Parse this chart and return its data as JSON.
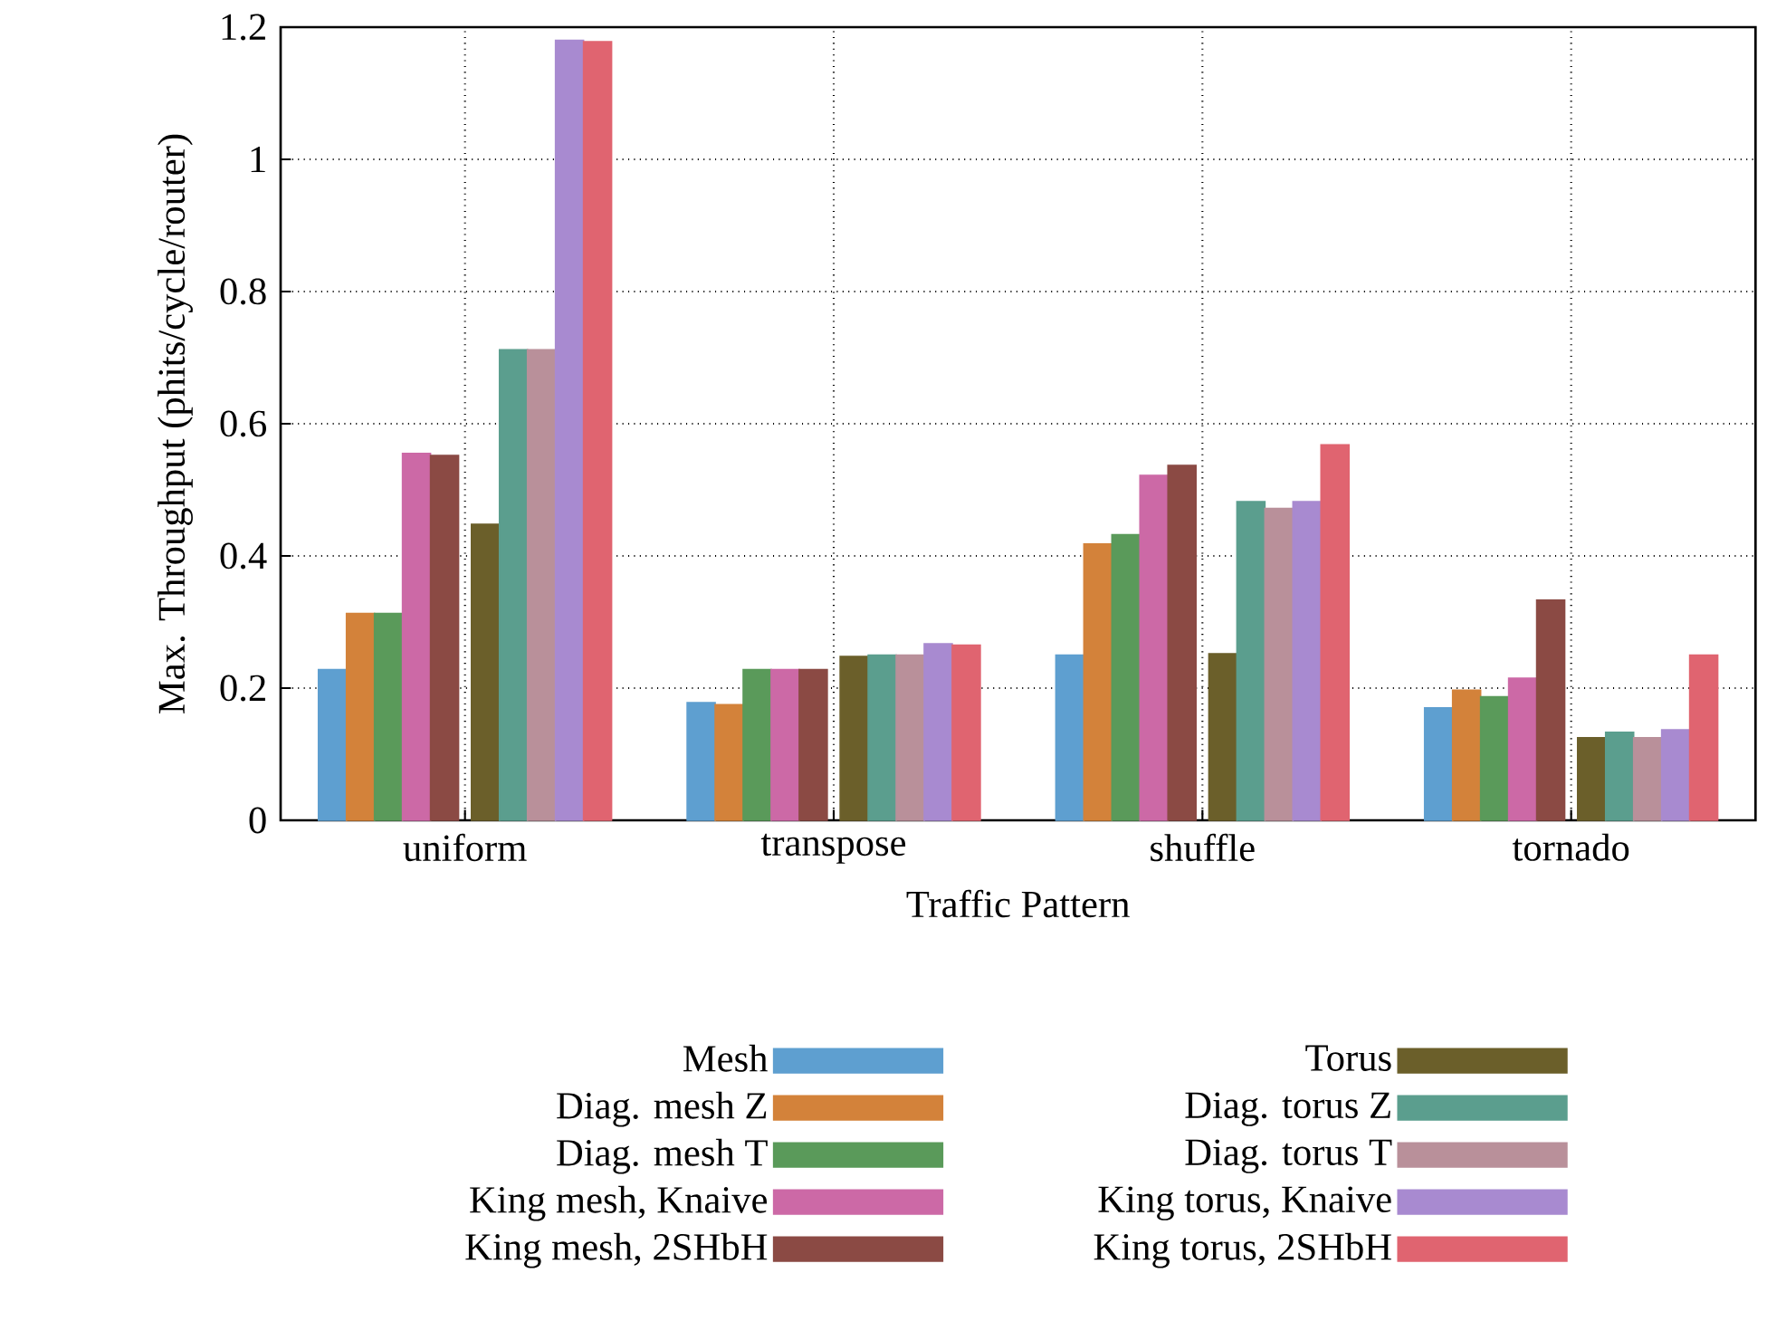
{
  "chart_data": {
    "type": "bar",
    "xlabel": "Traffic Pattern",
    "ylabel": "Max. Throughput (phits/cycle/router)",
    "categories": [
      "uniform",
      "transpose",
      "shuffle",
      "tornado"
    ],
    "series": [
      {
        "name": "Mesh",
        "color": "#5e9fd0",
        "values": [
          0.228,
          0.178,
          0.25,
          0.17
        ]
      },
      {
        "name": "Diag. mesh Z",
        "color": "#d3823a",
        "values": [
          0.313,
          0.175,
          0.418,
          0.197
        ]
      },
      {
        "name": "Diag. mesh T",
        "color": "#5a9a5a",
        "values": [
          0.313,
          0.228,
          0.432,
          0.187
        ]
      },
      {
        "name": "King mesh, Knaive",
        "color": "#cc69a6",
        "values": [
          0.555,
          0.228,
          0.522,
          0.215
        ]
      },
      {
        "name": "King mesh, 2SHbH",
        "color": "#8b4a44",
        "values": [
          0.552,
          0.228,
          0.537,
          0.333
        ]
      },
      {
        "name": "Torus",
        "color": "#6b5f2a",
        "values": [
          0.448,
          0.248,
          0.252,
          0.125
        ]
      },
      {
        "name": "Diag. torus Z",
        "color": "#5b9e8e",
        "values": [
          0.712,
          0.25,
          0.482,
          0.133
        ]
      },
      {
        "name": "Diag. torus T",
        "color": "#b9909a",
        "values": [
          0.712,
          0.25,
          0.472,
          0.125
        ]
      },
      {
        "name": "King torus, Knaive",
        "color": "#a88ad0",
        "values": [
          1.18,
          0.267,
          0.482,
          0.137
        ]
      },
      {
        "name": "King torus, 2SHbH",
        "color": "#e06470",
        "values": [
          1.178,
          0.265,
          0.568,
          0.25
        ]
      }
    ],
    "ylim": [
      0,
      1.2
    ],
    "yticks": [
      0,
      0.2,
      0.4,
      0.6,
      0.8,
      1,
      1.2
    ],
    "grid": true,
    "legend": "bottom"
  }
}
